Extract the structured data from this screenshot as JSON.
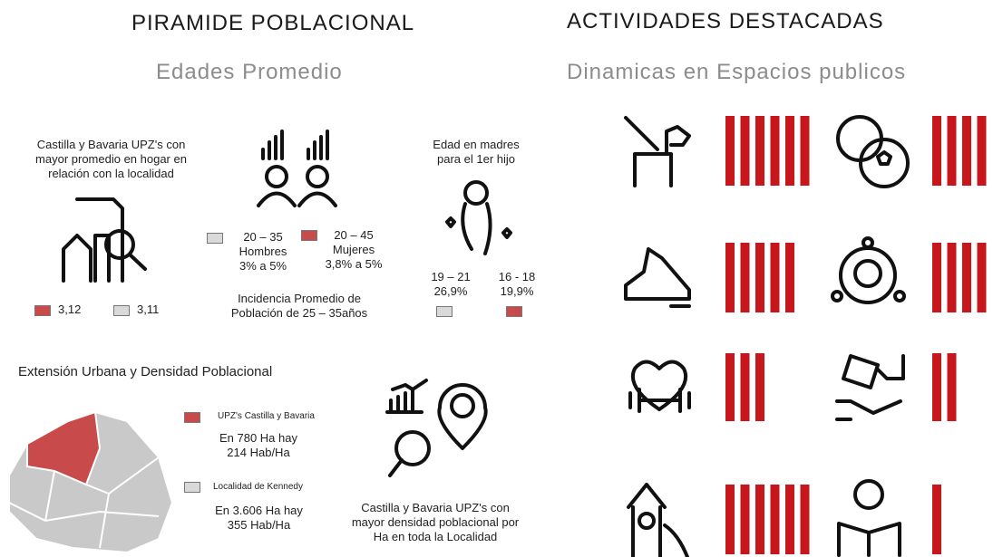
{
  "left": {
    "title": "PIRAMIDE POBLACIONAL",
    "subtitle": "Edades Promedio",
    "household": {
      "lines": [
        "Castilla y Bavaria UPZ's con",
        "mayor promedio en hogar en",
        "relación con la localidad"
      ],
      "legend": [
        "3,12",
        "3,11"
      ]
    },
    "gender": {
      "items": [
        {
          "range": "20 – 35",
          "label": "Hombres",
          "value": "3% a 5%"
        },
        {
          "range": "20 – 45",
          "label": "Mujeres",
          "value": "3,8% a 5%"
        }
      ],
      "caption": [
        "Incidencia Promedio de",
        "Población de  25 – 35años"
      ]
    },
    "mothers": {
      "title": [
        "Edad en madres",
        "para el 1er hijo"
      ],
      "items": [
        {
          "range": "19 – 21",
          "value": "26,9%"
        },
        {
          "range": "16 - 18",
          "value": "19,9%"
        }
      ]
    },
    "density": {
      "title": "Extensión Urbana y Densidad Poblacional",
      "legend": [
        {
          "label": "UPZ's Castilla y Bavaria",
          "lines": [
            "En 780 Ha hay",
            "214 Hab/Ha"
          ]
        },
        {
          "label": "Localidad de Kennedy",
          "lines": [
            "En 3.606 Ha hay",
            "355 Hab/Ha"
          ]
        }
      ],
      "caption": [
        "Castilla y Bavaria UPZ's con",
        "mayor densidad poblacional por",
        "Ha en toda la Localidad"
      ]
    }
  },
  "right": {
    "title": "ACTIVIDADES DESTACADAS",
    "subtitle": "Dinamicas en Espacios publicos",
    "activities": [
      6,
      4,
      5,
      4,
      3,
      2,
      6,
      1
    ],
    "color": "#c8161d"
  }
}
